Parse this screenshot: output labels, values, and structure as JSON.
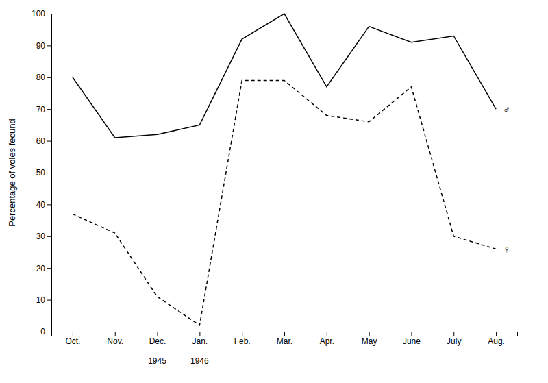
{
  "chart_data": {
    "type": "line",
    "y_label": "Percentage of voles fecund",
    "categories": [
      "Oct.",
      "Nov.",
      "Dec.",
      "Jan.",
      "Feb.",
      "Mar.",
      "Apr.",
      "May",
      "June",
      "July",
      "Aug."
    ],
    "series": [
      {
        "name": "♂",
        "color": "#000000",
        "line_style": "solid",
        "values": [
          80,
          61,
          62,
          65,
          92,
          100,
          77,
          96,
          91,
          93,
          70
        ]
      },
      {
        "name": "♀",
        "color": "#000000",
        "line_style": "dashed",
        "values": [
          37,
          31,
          11,
          2,
          79,
          79,
          68,
          66,
          77,
          30,
          26
        ]
      }
    ],
    "annotations": [
      {
        "text": "1945",
        "x": "Dec."
      },
      {
        "text": "1946",
        "x": "Jan."
      }
    ],
    "ylim": [
      0,
      100
    ],
    "yticks": [
      0,
      10,
      20,
      30,
      40,
      50,
      60,
      70,
      80,
      90,
      100
    ],
    "grid": false
  }
}
